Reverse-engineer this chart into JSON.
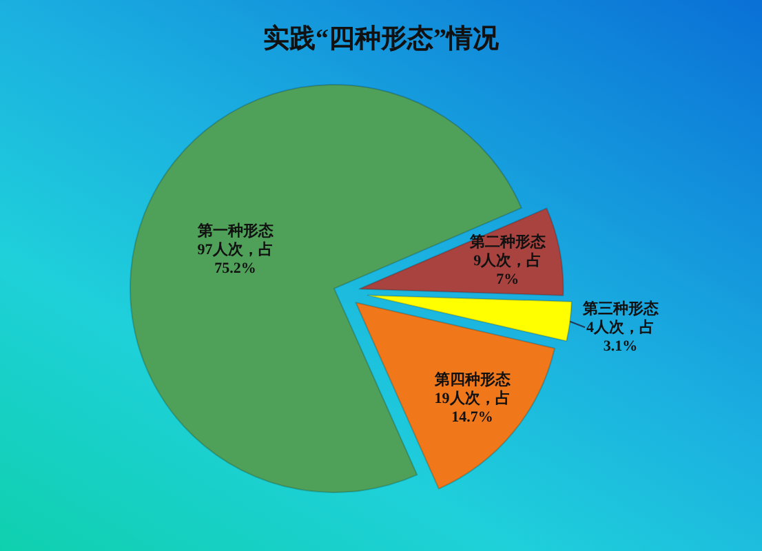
{
  "chart_data": {
    "type": "pie",
    "title": "实践“四种形态”情况",
    "categories": [
      "第一种形态",
      "第二种形态",
      "第三种形态",
      "第四种形态"
    ],
    "values": [
      97,
      9,
      4,
      19
    ],
    "colors": [
      "#4fa059",
      "#a9433f",
      "#ffff00",
      "#f0781a"
    ],
    "value_labels": [
      "97人次，占\n75.2%",
      "9人次，占\n7%",
      "4人次，占\n3.1%",
      "19人次，占\n14.7%"
    ]
  }
}
